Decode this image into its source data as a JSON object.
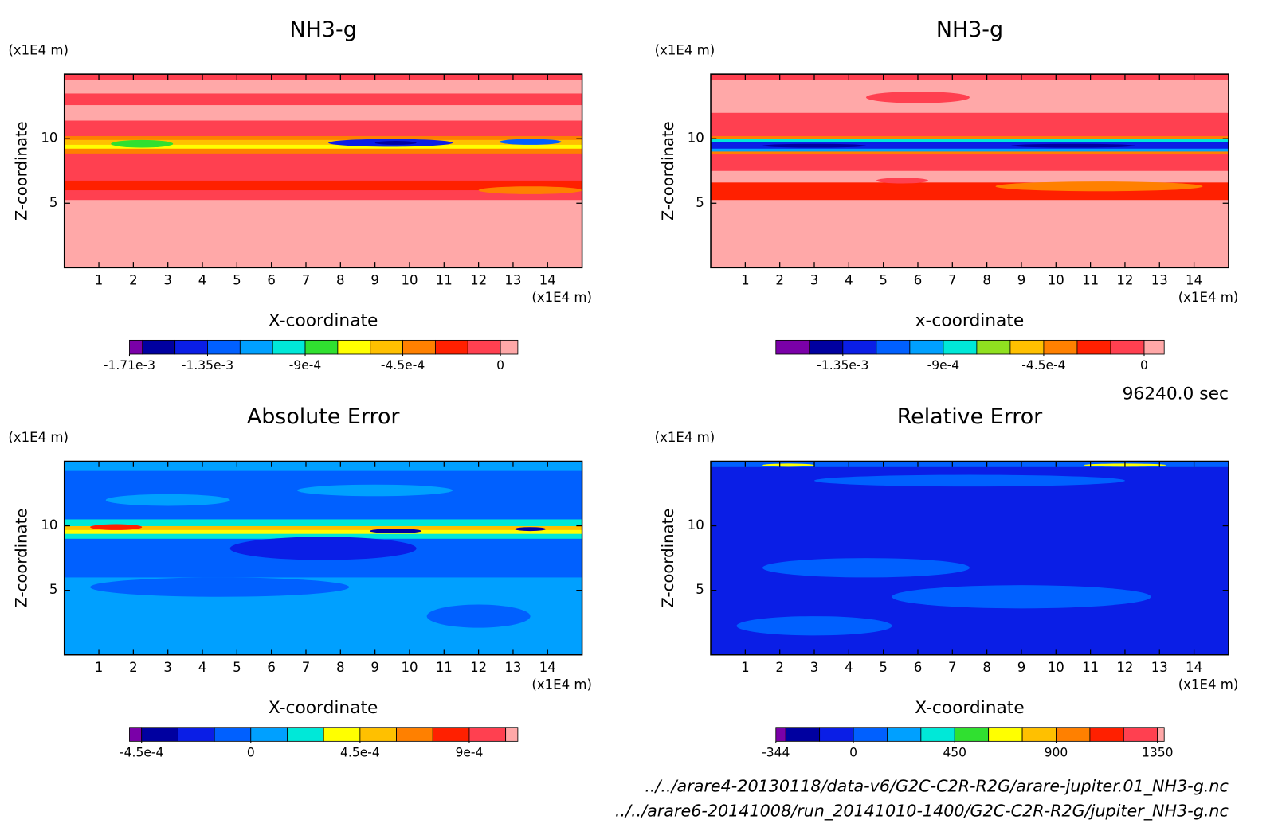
{
  "chart_data": [
    {
      "type": "contour",
      "title": "NH3-g",
      "xlabel": "X-coordinate",
      "ylabel": "Z-coordinate",
      "x_unit": "(x1E4 m)",
      "y_unit": "(x1E4 m)",
      "xlim": [
        0,
        15
      ],
      "ylim": [
        0,
        15
      ],
      "xticks": [
        1,
        2,
        3,
        4,
        5,
        6,
        7,
        8,
        9,
        10,
        11,
        12,
        13,
        14
      ],
      "yticks": [
        5,
        10
      ],
      "colorbar": {
        "levels": [
          -0.00171,
          -0.00165,
          -0.0015,
          -0.00135,
          -0.0012,
          -0.00105,
          -0.0009,
          -0.00075,
          -0.0006,
          -0.00045,
          -0.0003,
          -0.00015,
          0,
          8e-05
        ],
        "colors": [
          "#7a00a8",
          "#0000a0",
          "#0a1ee6",
          "#0060ff",
          "#00a0ff",
          "#00e8d8",
          "#30e030",
          "#ffff00",
          "#ffc000",
          "#ff8000",
          "#ff2000",
          "#ff4050",
          "#ffa8a8"
        ],
        "ticks": [
          {
            "value": -0.00171,
            "label": "-1.71e-3"
          },
          {
            "value": -0.00135,
            "label": "-1.35e-3"
          },
          {
            "value": -0.0009,
            "label": "-9e-4"
          },
          {
            "value": -0.00045,
            "label": "-4.5e-4"
          },
          0
        ]
      }
    },
    {
      "type": "contour",
      "title": "NH3-g",
      "xlabel": "x-coordinate",
      "ylabel": "Z-coordinate",
      "x_unit": "(x1E4 m)",
      "y_unit": "(x1E4 m)",
      "xlim": [
        0,
        15
      ],
      "ylim": [
        0,
        15
      ],
      "xticks": [
        1,
        2,
        3,
        4,
        5,
        6,
        7,
        8,
        9,
        10,
        11,
        12,
        13,
        14
      ],
      "yticks": [
        5,
        10
      ],
      "colorbar": {
        "levels": [
          -0.00165,
          -0.0015,
          -0.00135,
          -0.0012,
          -0.00105,
          -0.0009,
          -0.00075,
          -0.0006,
          -0.00045,
          -0.0003,
          -0.00015,
          0,
          9e-05
        ],
        "colors": [
          "#7a00a8",
          "#0000a0",
          "#0a1ee6",
          "#0060ff",
          "#00a0ff",
          "#00e8d8",
          "#90e020",
          "#ffc000",
          "#ff8000",
          "#ff2000",
          "#ff4050",
          "#ffa8a8"
        ],
        "ticks": [
          {
            "value": -0.00135,
            "label": "-1.35e-3"
          },
          {
            "value": -0.0009,
            "label": "-9e-4"
          },
          {
            "value": -0.00045,
            "label": "-4.5e-4"
          },
          0
        ]
      }
    },
    {
      "type": "contour",
      "title": "Absolute Error",
      "xlabel": "X-coordinate",
      "ylabel": "Z-coordinate",
      "x_unit": "(x1E4 m)",
      "y_unit": "(x1E4 m)",
      "xlim": [
        0,
        15
      ],
      "ylim": [
        0,
        15
      ],
      "xticks": [
        1,
        2,
        3,
        4,
        5,
        6,
        7,
        8,
        9,
        10,
        11,
        12,
        13,
        14
      ],
      "yticks": [
        5,
        10
      ],
      "colorbar": {
        "levels": [
          -0.0005,
          -0.00045,
          -0.0003,
          -0.00015,
          0,
          0.00015,
          0.0003,
          0.00045,
          0.0006,
          0.00075,
          0.0009,
          0.00105,
          0.0011
        ],
        "colors": [
          "#7a00a8",
          "#0000a0",
          "#0a1ee6",
          "#0060ff",
          "#00a0ff",
          "#00e8d8",
          "#ffff00",
          "#ffc000",
          "#ff8000",
          "#ff2000",
          "#ff4050",
          "#ffa8a8"
        ],
        "ticks": [
          {
            "value": -0.00045,
            "label": "-4.5e-4"
          },
          0,
          {
            "value": 0.00045,
            "label": "4.5e-4"
          },
          {
            "value": 0.0009,
            "label": "9e-4"
          }
        ]
      }
    },
    {
      "type": "contour",
      "title": "Relative Error",
      "xlabel": "X-coordinate",
      "ylabel": "Z-coordinate",
      "x_unit": "(x1E4 m)",
      "y_unit": "(x1E4 m)",
      "xlim": [
        0,
        15
      ],
      "ylim": [
        0,
        15
      ],
      "xticks": [
        1,
        2,
        3,
        4,
        5,
        6,
        7,
        8,
        9,
        10,
        11,
        12,
        13,
        14
      ],
      "yticks": [
        5,
        10
      ],
      "colorbar": {
        "levels": [
          -344,
          -300,
          -150,
          0,
          150,
          300,
          450,
          600,
          750,
          900,
          1050,
          1200,
          1350,
          1380
        ],
        "colors": [
          "#7a00a8",
          "#0000a0",
          "#0a1ee6",
          "#0060ff",
          "#00a0ff",
          "#00e8d8",
          "#30e030",
          "#ffff00",
          "#ffc000",
          "#ff8000",
          "#ff2000",
          "#ff4050",
          "#ffa8a8"
        ],
        "ticks": [
          -344,
          0,
          450,
          900,
          1350
        ]
      }
    }
  ],
  "time_label": "96240.0 sec",
  "files": [
    "../../arare4-20130118/data-v6/G2C-C2R-R2G/arare-jupiter.01_NH3-g.nc",
    "../../arare6-20141008/run_20141010-1400/G2C-C2R-R2G/jupiter_NH3-g.nc"
  ]
}
